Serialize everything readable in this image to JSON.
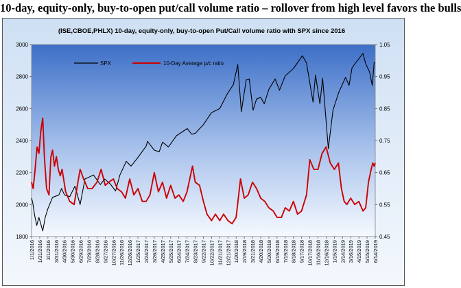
{
  "page": {
    "title": "10-day, equity-only, buy-to-open put/call volume ratio – rollover from high level favors the bulls"
  },
  "chart_data": {
    "type": "line",
    "title": "(ISE,CBOE,PHLX) 10-day, equity-only, buy-to-open Put/Call volume ratio with SPX since 2016",
    "xlabel": "",
    "ylabel": "",
    "y_left_range": [
      1800,
      3000
    ],
    "y_left_ticks": [
      1800,
      2000,
      2200,
      2400,
      2600,
      2800,
      3000
    ],
    "y_right_range": [
      0.45,
      1.05
    ],
    "y_right_ticks": [
      "0.45",
      "0.55",
      "0.65",
      "0.75",
      "0.85",
      "0.95",
      "1.05"
    ],
    "x_ticks": [
      "1/1/2016",
      "1/31/2016",
      "3/1/2016",
      "3/31/2016",
      "4/30/2016",
      "5/30/2016",
      "6/29/2016",
      "7/29/2016",
      "8/28/2016",
      "9/27/2016",
      "10/27/2016",
      "11/26/2016",
      "12/26/2016",
      "1/25/2017",
      "2/24/2017",
      "3/26/2017",
      "4/25/2017",
      "5/25/2017",
      "6/24/2017",
      "7/24/2017",
      "8/23/2017",
      "9/22/2017",
      "10/22/2017",
      "11/21/2017",
      "12/21/2017",
      "1/20/2018",
      "2/19/2018",
      "3/21/2018",
      "4/20/2018",
      "5/20/2018",
      "6/19/2018",
      "7/19/2018",
      "8/18/2018",
      "9/17/2018",
      "10/17/2018",
      "11/16/2018",
      "12/16/2018",
      "1/15/2019",
      "2/14/2019",
      "3/16/2019",
      "4/15/2019",
      "5/15/2019",
      "6/14/2019"
    ],
    "grid": false,
    "legend_position": "top-left",
    "colors": {
      "spx": "#000000",
      "ratio": "#cc0000",
      "plot_background_top": "#3d6fc7",
      "plot_background_bottom": "#f6f9ff"
    },
    "series": [
      {
        "name": "SPX",
        "axis": "left",
        "points": [
          [
            "1/1/2016",
            2040
          ],
          [
            "1/5/2016",
            2015
          ],
          [
            "1/12/2016",
            1935
          ],
          [
            "1/20/2016",
            1870
          ],
          [
            "1/28/2016",
            1920
          ],
          [
            "2/11/2016",
            1835
          ],
          [
            "2/20/2016",
            1920
          ],
          [
            "3/1/2016",
            1975
          ],
          [
            "3/18/2016",
            2045
          ],
          [
            "4/10/2016",
            2060
          ],
          [
            "4/20/2016",
            2100
          ],
          [
            "5/1/2016",
            2060
          ],
          [
            "5/20/2016",
            2050
          ],
          [
            "6/8/2016",
            2115
          ],
          [
            "6/27/2016",
            2000
          ],
          [
            "7/15/2016",
            2160
          ],
          [
            "8/15/2016",
            2185
          ],
          [
            "9/9/2016",
            2125
          ],
          [
            "9/25/2016",
            2160
          ],
          [
            "10/15/2016",
            2130
          ],
          [
            "11/4/2016",
            2085
          ],
          [
            "11/20/2016",
            2185
          ],
          [
            "12/13/2016",
            2270
          ],
          [
            "12/31/2016",
            2240
          ],
          [
            "1/25/2017",
            2295
          ],
          [
            "2/24/2017",
            2365
          ],
          [
            "3/1/2017",
            2395
          ],
          [
            "3/26/2017",
            2340
          ],
          [
            "4/13/2017",
            2330
          ],
          [
            "4/25/2017",
            2390
          ],
          [
            "5/17/2017",
            2360
          ],
          [
            "6/15/2017",
            2430
          ],
          [
            "7/25/2017",
            2475
          ],
          [
            "8/10/2017",
            2440
          ],
          [
            "8/23/2017",
            2445
          ],
          [
            "9/22/2017",
            2500
          ],
          [
            "10/22/2017",
            2575
          ],
          [
            "11/21/2017",
            2600
          ],
          [
            "12/18/2017",
            2690
          ],
          [
            "1/10/2018",
            2750
          ],
          [
            "1/26/2018",
            2875
          ],
          [
            "2/8/2018",
            2580
          ],
          [
            "2/26/2018",
            2780
          ],
          [
            "3/9/2018",
            2785
          ],
          [
            "3/23/2018",
            2590
          ],
          [
            "4/5/2018",
            2660
          ],
          [
            "4/20/2018",
            2670
          ],
          [
            "5/3/2018",
            2630
          ],
          [
            "5/20/2018",
            2720
          ],
          [
            "6/12/2018",
            2785
          ],
          [
            "6/28/2018",
            2715
          ],
          [
            "7/19/2018",
            2805
          ],
          [
            "8/18/2018",
            2850
          ],
          [
            "9/20/2018",
            2930
          ],
          [
            "10/5/2018",
            2885
          ],
          [
            "10/29/2018",
            2640
          ],
          [
            "11/7/2018",
            2810
          ],
          [
            "11/23/2018",
            2630
          ],
          [
            "12/3/2018",
            2790
          ],
          [
            "12/24/2018",
            2350
          ],
          [
            "1/10/2019",
            2590
          ],
          [
            "1/31/2019",
            2700
          ],
          [
            "2/25/2019",
            2795
          ],
          [
            "3/10/2019",
            2745
          ],
          [
            "3/21/2019",
            2855
          ],
          [
            "4/5/2019",
            2890
          ],
          [
            "4/30/2019",
            2945
          ],
          [
            "5/10/2019",
            2880
          ],
          [
            "5/24/2019",
            2830
          ],
          [
            "6/3/2019",
            2745
          ],
          [
            "6/10/2019",
            2885
          ],
          [
            "6/14/2019",
            2890
          ]
        ]
      },
      {
        "name": "10-Day Average p/c ratio",
        "axis": "right",
        "points": [
          [
            "1/1/2016",
            0.62
          ],
          [
            "1/7/2016",
            0.6
          ],
          [
            "1/14/2016",
            0.66
          ],
          [
            "1/21/2016",
            0.73
          ],
          [
            "1/28/2016",
            0.71
          ],
          [
            "2/4/2016",
            0.78
          ],
          [
            "2/11/2016",
            0.82
          ],
          [
            "2/17/2016",
            0.7
          ],
          [
            "2/25/2016",
            0.6
          ],
          [
            "3/5/2016",
            0.58
          ],
          [
            "3/12/2016",
            0.7
          ],
          [
            "3/18/2016",
            0.72
          ],
          [
            "3/25/2016",
            0.67
          ],
          [
            "4/1/2016",
            0.7
          ],
          [
            "4/8/2016",
            0.66
          ],
          [
            "4/15/2016",
            0.64
          ],
          [
            "4/22/2016",
            0.66
          ],
          [
            "5/5/2016",
            0.59
          ],
          [
            "5/20/2016",
            0.56
          ],
          [
            "6/5/2016",
            0.55
          ],
          [
            "6/15/2016",
            0.6
          ],
          [
            "6/27/2016",
            0.66
          ],
          [
            "7/10/2016",
            0.63
          ],
          [
            "7/25/2016",
            0.6
          ],
          [
            "8/10/2016",
            0.6
          ],
          [
            "8/28/2016",
            0.62
          ],
          [
            "9/12/2016",
            0.66
          ],
          [
            "9/27/2016",
            0.61
          ],
          [
            "10/10/2016",
            0.62
          ],
          [
            "10/27/2016",
            0.63
          ],
          [
            "11/10/2016",
            0.6
          ],
          [
            "11/26/2016",
            0.59
          ],
          [
            "12/10/2016",
            0.57
          ],
          [
            "12/26/2016",
            0.63
          ],
          [
            "1/10/2017",
            0.58
          ],
          [
            "1/25/2017",
            0.6
          ],
          [
            "2/10/2017",
            0.56
          ],
          [
            "2/24/2017",
            0.56
          ],
          [
            "3/10/2017",
            0.58
          ],
          [
            "3/26/2017",
            0.65
          ],
          [
            "4/10/2017",
            0.59
          ],
          [
            "4/25/2017",
            0.62
          ],
          [
            "5/10/2017",
            0.57
          ],
          [
            "5/25/2017",
            0.61
          ],
          [
            "6/10/2017",
            0.57
          ],
          [
            "6/24/2017",
            0.58
          ],
          [
            "7/10/2017",
            0.56
          ],
          [
            "7/24/2017",
            0.59
          ],
          [
            "8/13/2017",
            0.67
          ],
          [
            "8/23/2017",
            0.62
          ],
          [
            "9/8/2017",
            0.61
          ],
          [
            "9/22/2017",
            0.56
          ],
          [
            "10/5/2017",
            0.52
          ],
          [
            "10/22/2017",
            0.5
          ],
          [
            "11/5/2017",
            0.52
          ],
          [
            "11/21/2017",
            0.5
          ],
          [
            "12/5/2017",
            0.52
          ],
          [
            "12/21/2017",
            0.5
          ],
          [
            "1/5/2018",
            0.49
          ],
          [
            "1/20/2018",
            0.51
          ],
          [
            "2/5/2018",
            0.63
          ],
          [
            "2/19/2018",
            0.57
          ],
          [
            "3/5/2018",
            0.58
          ],
          [
            "3/21/2018",
            0.62
          ],
          [
            "4/5/2018",
            0.6
          ],
          [
            "4/20/2018",
            0.57
          ],
          [
            "5/5/2018",
            0.56
          ],
          [
            "5/20/2018",
            0.54
          ],
          [
            "6/5/2018",
            0.53
          ],
          [
            "6/19/2018",
            0.51
          ],
          [
            "7/5/2018",
            0.51
          ],
          [
            "7/19/2018",
            0.54
          ],
          [
            "8/3/2018",
            0.53
          ],
          [
            "8/18/2018",
            0.56
          ],
          [
            "9/2/2018",
            0.52
          ],
          [
            "9/17/2018",
            0.53
          ],
          [
            "10/5/2018",
            0.58
          ],
          [
            "10/17/2018",
            0.69
          ],
          [
            "11/1/2018",
            0.66
          ],
          [
            "11/16/2018",
            0.66
          ],
          [
            "12/1/2018",
            0.71
          ],
          [
            "12/16/2018",
            0.73
          ],
          [
            "12/31/2018",
            0.68
          ],
          [
            "1/15/2019",
            0.66
          ],
          [
            "1/30/2019",
            0.68
          ],
          [
            "2/10/2019",
            0.6
          ],
          [
            "2/20/2019",
            0.56
          ],
          [
            "3/2/2019",
            0.55
          ],
          [
            "3/16/2019",
            0.57
          ],
          [
            "3/31/2019",
            0.55
          ],
          [
            "4/15/2019",
            0.56
          ],
          [
            "4/30/2019",
            0.53
          ],
          [
            "5/10/2019",
            0.54
          ],
          [
            "5/20/2019",
            0.62
          ],
          [
            "5/30/2019",
            0.66
          ],
          [
            "6/5/2019",
            0.68
          ],
          [
            "6/10/2019",
            0.67
          ],
          [
            "6/14/2019",
            0.68
          ]
        ]
      }
    ]
  }
}
